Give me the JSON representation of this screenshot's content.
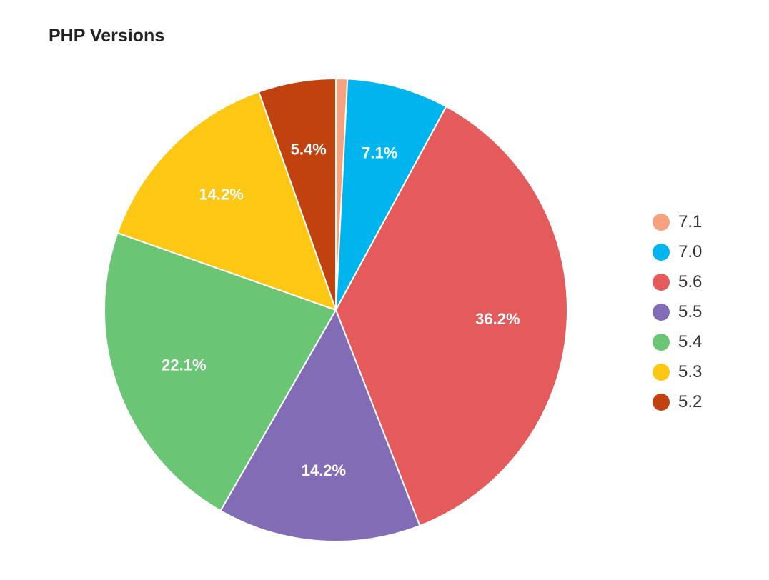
{
  "chart_data": {
    "type": "pie",
    "title": "PHP Versions",
    "legend_position": "right",
    "slices": [
      {
        "label": "7.1",
        "value": 0.8,
        "display": "",
        "color": "#F7A27E"
      },
      {
        "label": "7.0",
        "value": 7.1,
        "display": "7.1%",
        "color": "#00B5EE"
      },
      {
        "label": "5.6",
        "value": 36.2,
        "display": "36.2%",
        "color": "#E55B5B"
      },
      {
        "label": "5.5",
        "value": 14.2,
        "display": "14.2%",
        "color": "#826CB5"
      },
      {
        "label": "5.4",
        "value": 22.1,
        "display": "22.1%",
        "color": "#6AC574"
      },
      {
        "label": "5.3",
        "value": 14.2,
        "display": "14.2%",
        "color": "#FDC714"
      },
      {
        "label": "5.2",
        "value": 5.4,
        "display": "5.4%",
        "color": "#C0420F"
      }
    ]
  }
}
